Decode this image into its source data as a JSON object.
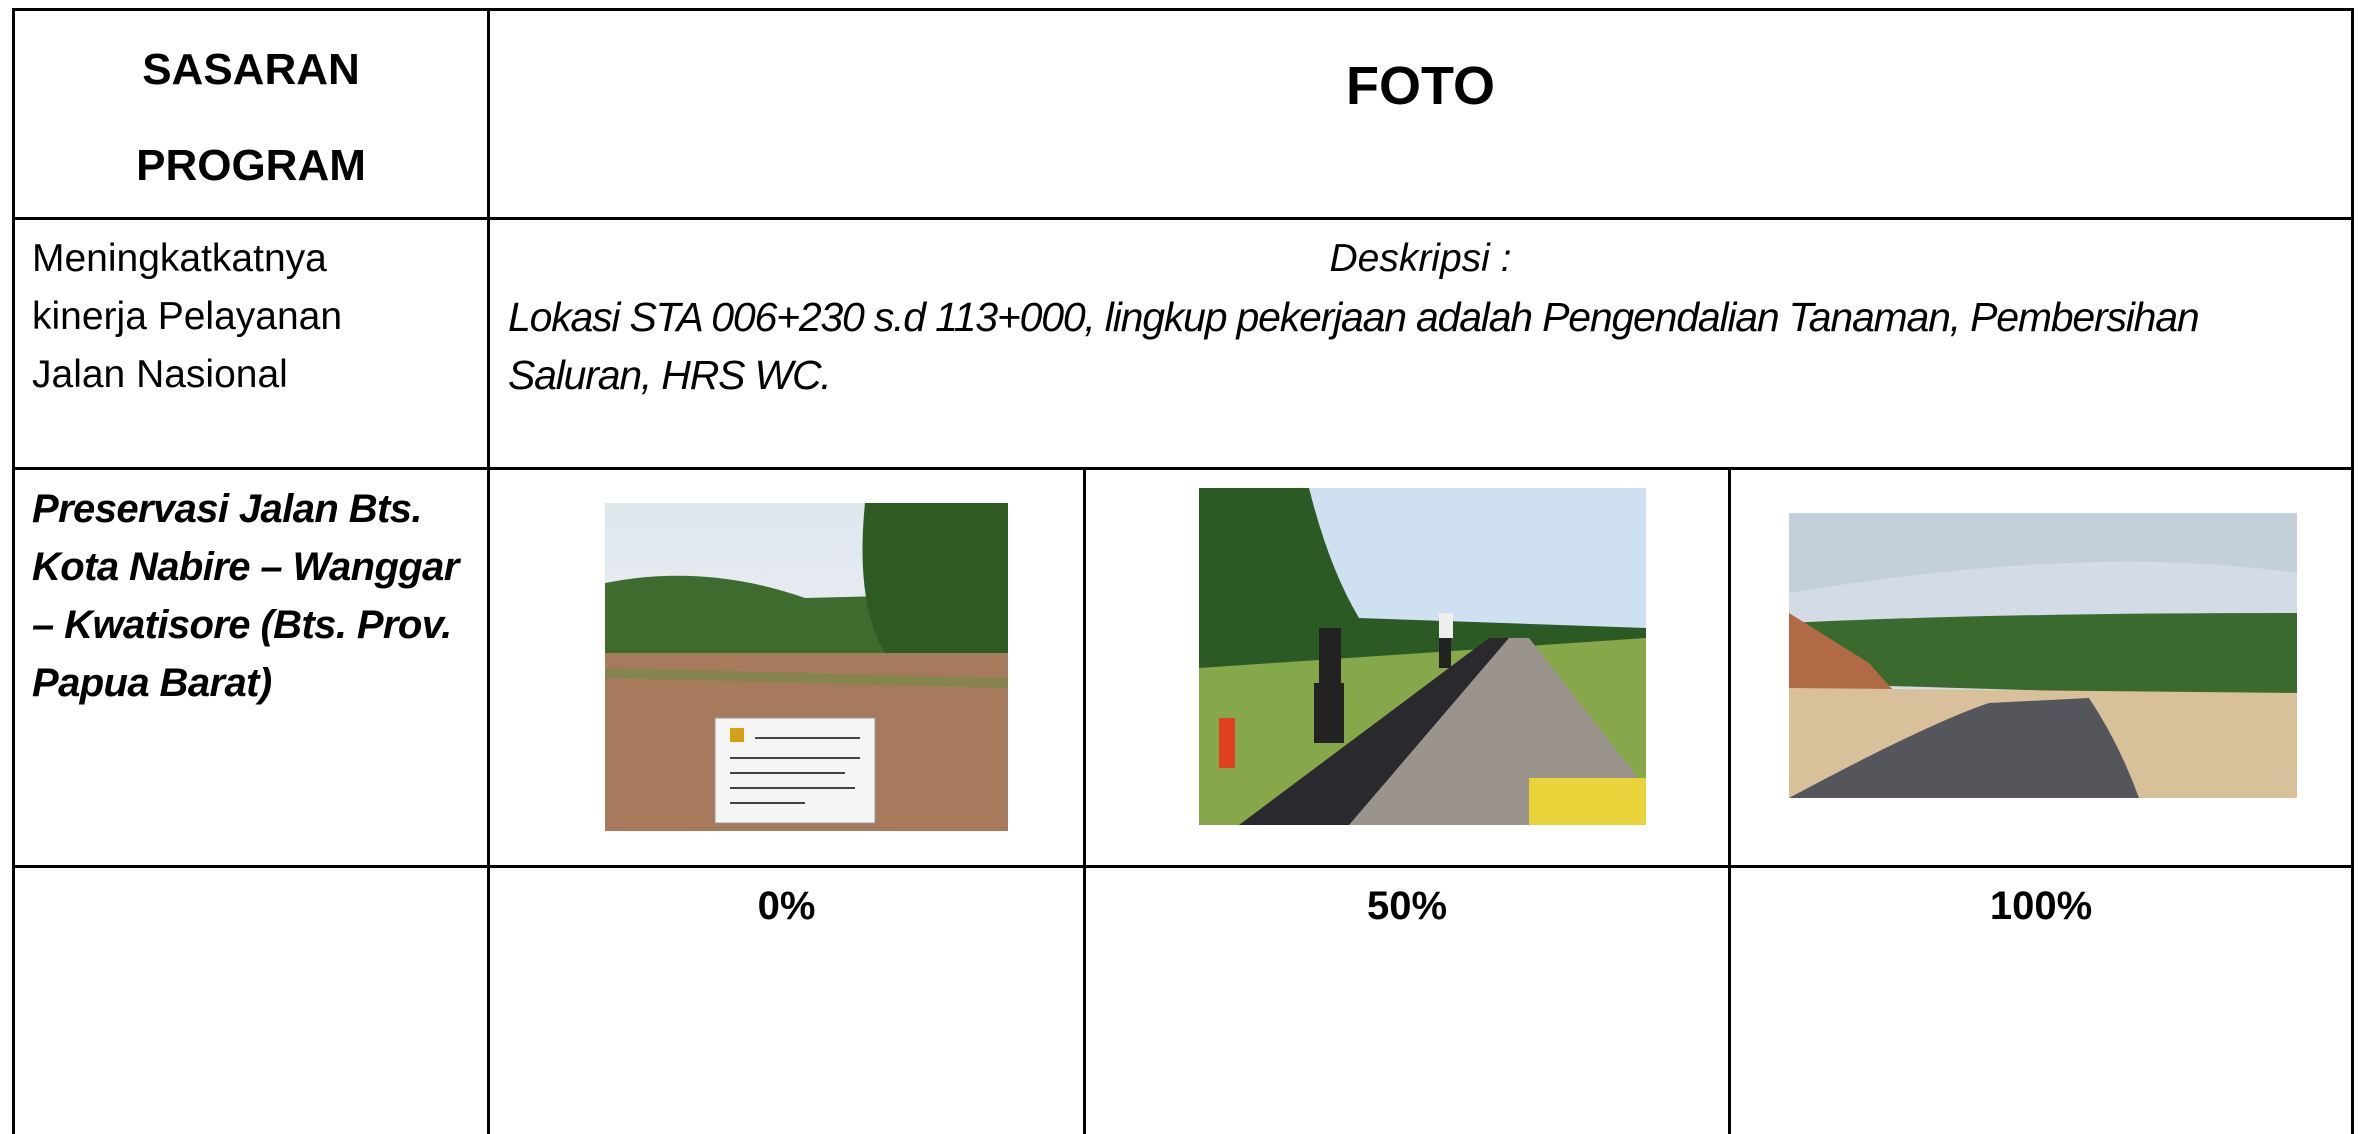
{
  "header": {
    "left_title_lines": [
      "SASARAN",
      "PROGRAM"
    ],
    "right_title": "FOTO"
  },
  "row1": {
    "target_lines": [
      "Meningkatkatnya",
      "kinerja Pelayanan",
      "Jalan Nasional"
    ],
    "description_label": "Deskripsi :",
    "description": "Lokasi STA 006+230 s.d 113+000, lingkup pekerjaan adalah Pengendalian Tanaman, Pembersihan Saluran, HRS WC."
  },
  "row2": {
    "program_lines": [
      "Preservasi Jalan Bts.",
      "Kota Nabire – Wanggar",
      "– Kwatisore (Bts. Prov.",
      "Papua Barat)"
    ]
  },
  "progress": [
    "0%",
    "50%",
    "100%"
  ]
}
